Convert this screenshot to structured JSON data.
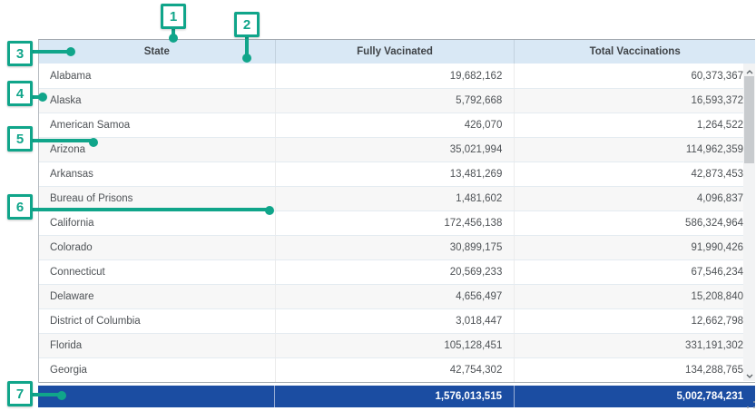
{
  "table": {
    "columns": [
      {
        "label": "State"
      },
      {
        "label": "Fully Vacinated"
      },
      {
        "label": "Total Vaccinations"
      }
    ],
    "rows": [
      {
        "state": "Alabama",
        "fully_vaccinated": "19,682,162",
        "total_vaccinations": "60,373,367"
      },
      {
        "state": "Alaska",
        "fully_vaccinated": "5,792,668",
        "total_vaccinations": "16,593,372"
      },
      {
        "state": "American Samoa",
        "fully_vaccinated": "426,070",
        "total_vaccinations": "1,264,522"
      },
      {
        "state": "Arizona",
        "fully_vaccinated": "35,021,994",
        "total_vaccinations": "114,962,359"
      },
      {
        "state": "Arkansas",
        "fully_vaccinated": "13,481,269",
        "total_vaccinations": "42,873,453"
      },
      {
        "state": "Bureau of Prisons",
        "fully_vaccinated": "1,481,602",
        "total_vaccinations": "4,096,837"
      },
      {
        "state": "California",
        "fully_vaccinated": "172,456,138",
        "total_vaccinations": "586,324,964"
      },
      {
        "state": "Colorado",
        "fully_vaccinated": "30,899,175",
        "total_vaccinations": "91,990,426"
      },
      {
        "state": "Connecticut",
        "fully_vaccinated": "20,569,233",
        "total_vaccinations": "67,546,234"
      },
      {
        "state": "Delaware",
        "fully_vaccinated": "4,656,497",
        "total_vaccinations": "15,208,840"
      },
      {
        "state": "District of Columbia",
        "fully_vaccinated": "3,018,447",
        "total_vaccinations": "12,662,798"
      },
      {
        "state": "Florida",
        "fully_vaccinated": "105,128,451",
        "total_vaccinations": "331,191,302"
      },
      {
        "state": "Georgia",
        "fully_vaccinated": "42,754,302",
        "total_vaccinations": "134,288,765"
      }
    ],
    "totals": {
      "state": "",
      "fully_vaccinated": "1,576,013,515",
      "total_vaccinations": "5,002,784,231"
    }
  },
  "annotations": {
    "markers": [
      {
        "label": "1"
      },
      {
        "label": "2"
      },
      {
        "label": "3"
      },
      {
        "label": "4"
      },
      {
        "label": "5"
      },
      {
        "label": "6"
      },
      {
        "label": "7"
      }
    ]
  },
  "colors": {
    "accent_teal": "#10a58a",
    "header_bg": "#d9e8f5",
    "totals_bg": "#1b4da2",
    "row_alt_bg": "#f7f7f7",
    "row_border": "#e4ebf1",
    "body_text": "#4e5256"
  }
}
